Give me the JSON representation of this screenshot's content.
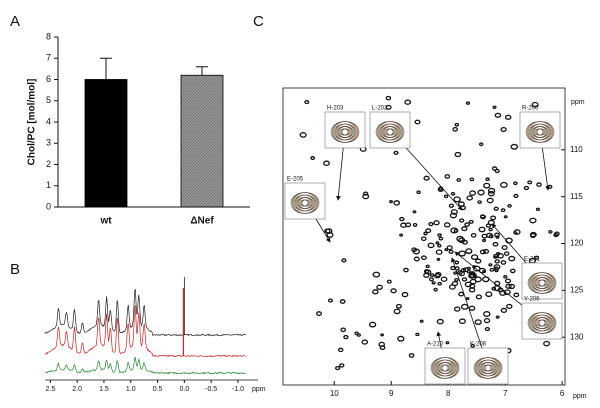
{
  "panels": [
    "A",
    "B",
    "C"
  ],
  "chart_data": [
    {
      "type": "bar",
      "ylabel": "Chol/PC [mol/mol]",
      "categories": [
        "wt",
        "ΔNef"
      ],
      "values": [
        6.0,
        6.2
      ],
      "errors": [
        1.0,
        0.4
      ],
      "colors": [
        "#000000",
        "#8c8c8c"
      ],
      "ylim": [
        0,
        8
      ],
      "yticks": [
        0,
        1,
        2,
        3,
        4,
        5,
        6,
        7,
        8
      ]
    },
    {
      "type": "spectrum",
      "xlabel": "ppm",
      "xlim": [
        2.6,
        -1.15
      ],
      "xticks": [
        2.5,
        {
          "value": 2,
          "label": "2.0"
        },
        1.5,
        {
          "value": 1,
          "label": "1.0"
        },
        0.5,
        {
          "value": 0,
          "label": "0.0"
        },
        -0.5,
        {
          "value": -1,
          "label": "-1.0"
        }
      ],
      "colors": [
        "#222222",
        "#cc2222",
        "#22882e"
      ]
    },
    {
      "type": "contour",
      "xlabel": "ppm",
      "ylabel": "ppm",
      "xlim": [
        10.9,
        5.95
      ],
      "xticks": [
        10,
        9,
        8,
        7,
        6
      ],
      "ylim": [
        103.4,
        135.1
      ],
      "yticks": [
        110,
        115,
        120,
        125,
        130
      ],
      "insets": [
        "H-203",
        "L-202",
        "R-200",
        "E-205",
        "E-201",
        "Y-206",
        "A-210",
        "K-208"
      ]
    }
  ]
}
